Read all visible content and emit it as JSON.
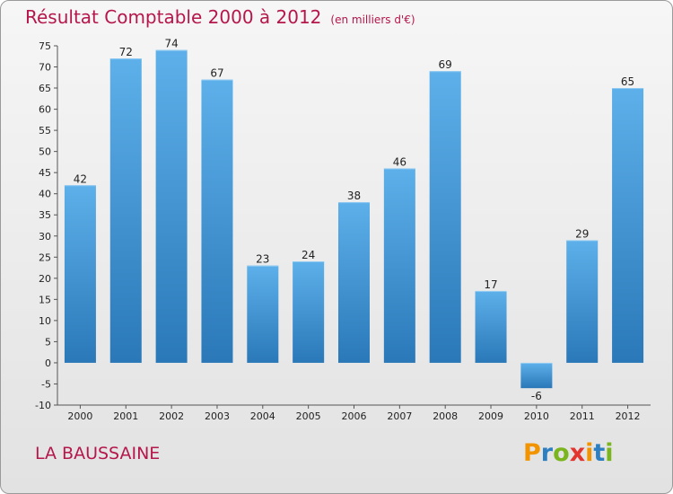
{
  "header": {
    "title": "Résultat Comptable 2000 à 2012",
    "subtitle": "(en milliers d'€)"
  },
  "footer": {
    "commune": "LA BAUSSAINE",
    "logo": {
      "letters": [
        "P",
        "r",
        "o",
        "x",
        "i",
        "t",
        "i"
      ],
      "colors": [
        "#f29400",
        "#2e7fc1",
        "#7ab51d",
        "#e3342f",
        "#f29400",
        "#2e7fc1",
        "#7ab51d"
      ]
    }
  },
  "chart_data": {
    "type": "bar",
    "title": "Résultat Comptable 2000 à 2012",
    "categories": [
      "2000",
      "2001",
      "2002",
      "2003",
      "2004",
      "2005",
      "2006",
      "2007",
      "2008",
      "2009",
      "2010",
      "2011",
      "2012"
    ],
    "values": [
      42,
      72,
      74,
      67,
      23,
      24,
      38,
      46,
      69,
      17,
      -6,
      29,
      65
    ],
    "ylim": [
      -10,
      75
    ],
    "yticks": [
      -10,
      -5,
      0,
      5,
      10,
      15,
      20,
      25,
      30,
      35,
      40,
      45,
      50,
      55,
      60,
      65,
      70,
      75
    ],
    "xlabel": "",
    "ylabel": "",
    "grid": false,
    "colors": {
      "bar_top": "#5db0ea",
      "bar_bottom": "#2a78b8",
      "axis": "#555555"
    }
  }
}
